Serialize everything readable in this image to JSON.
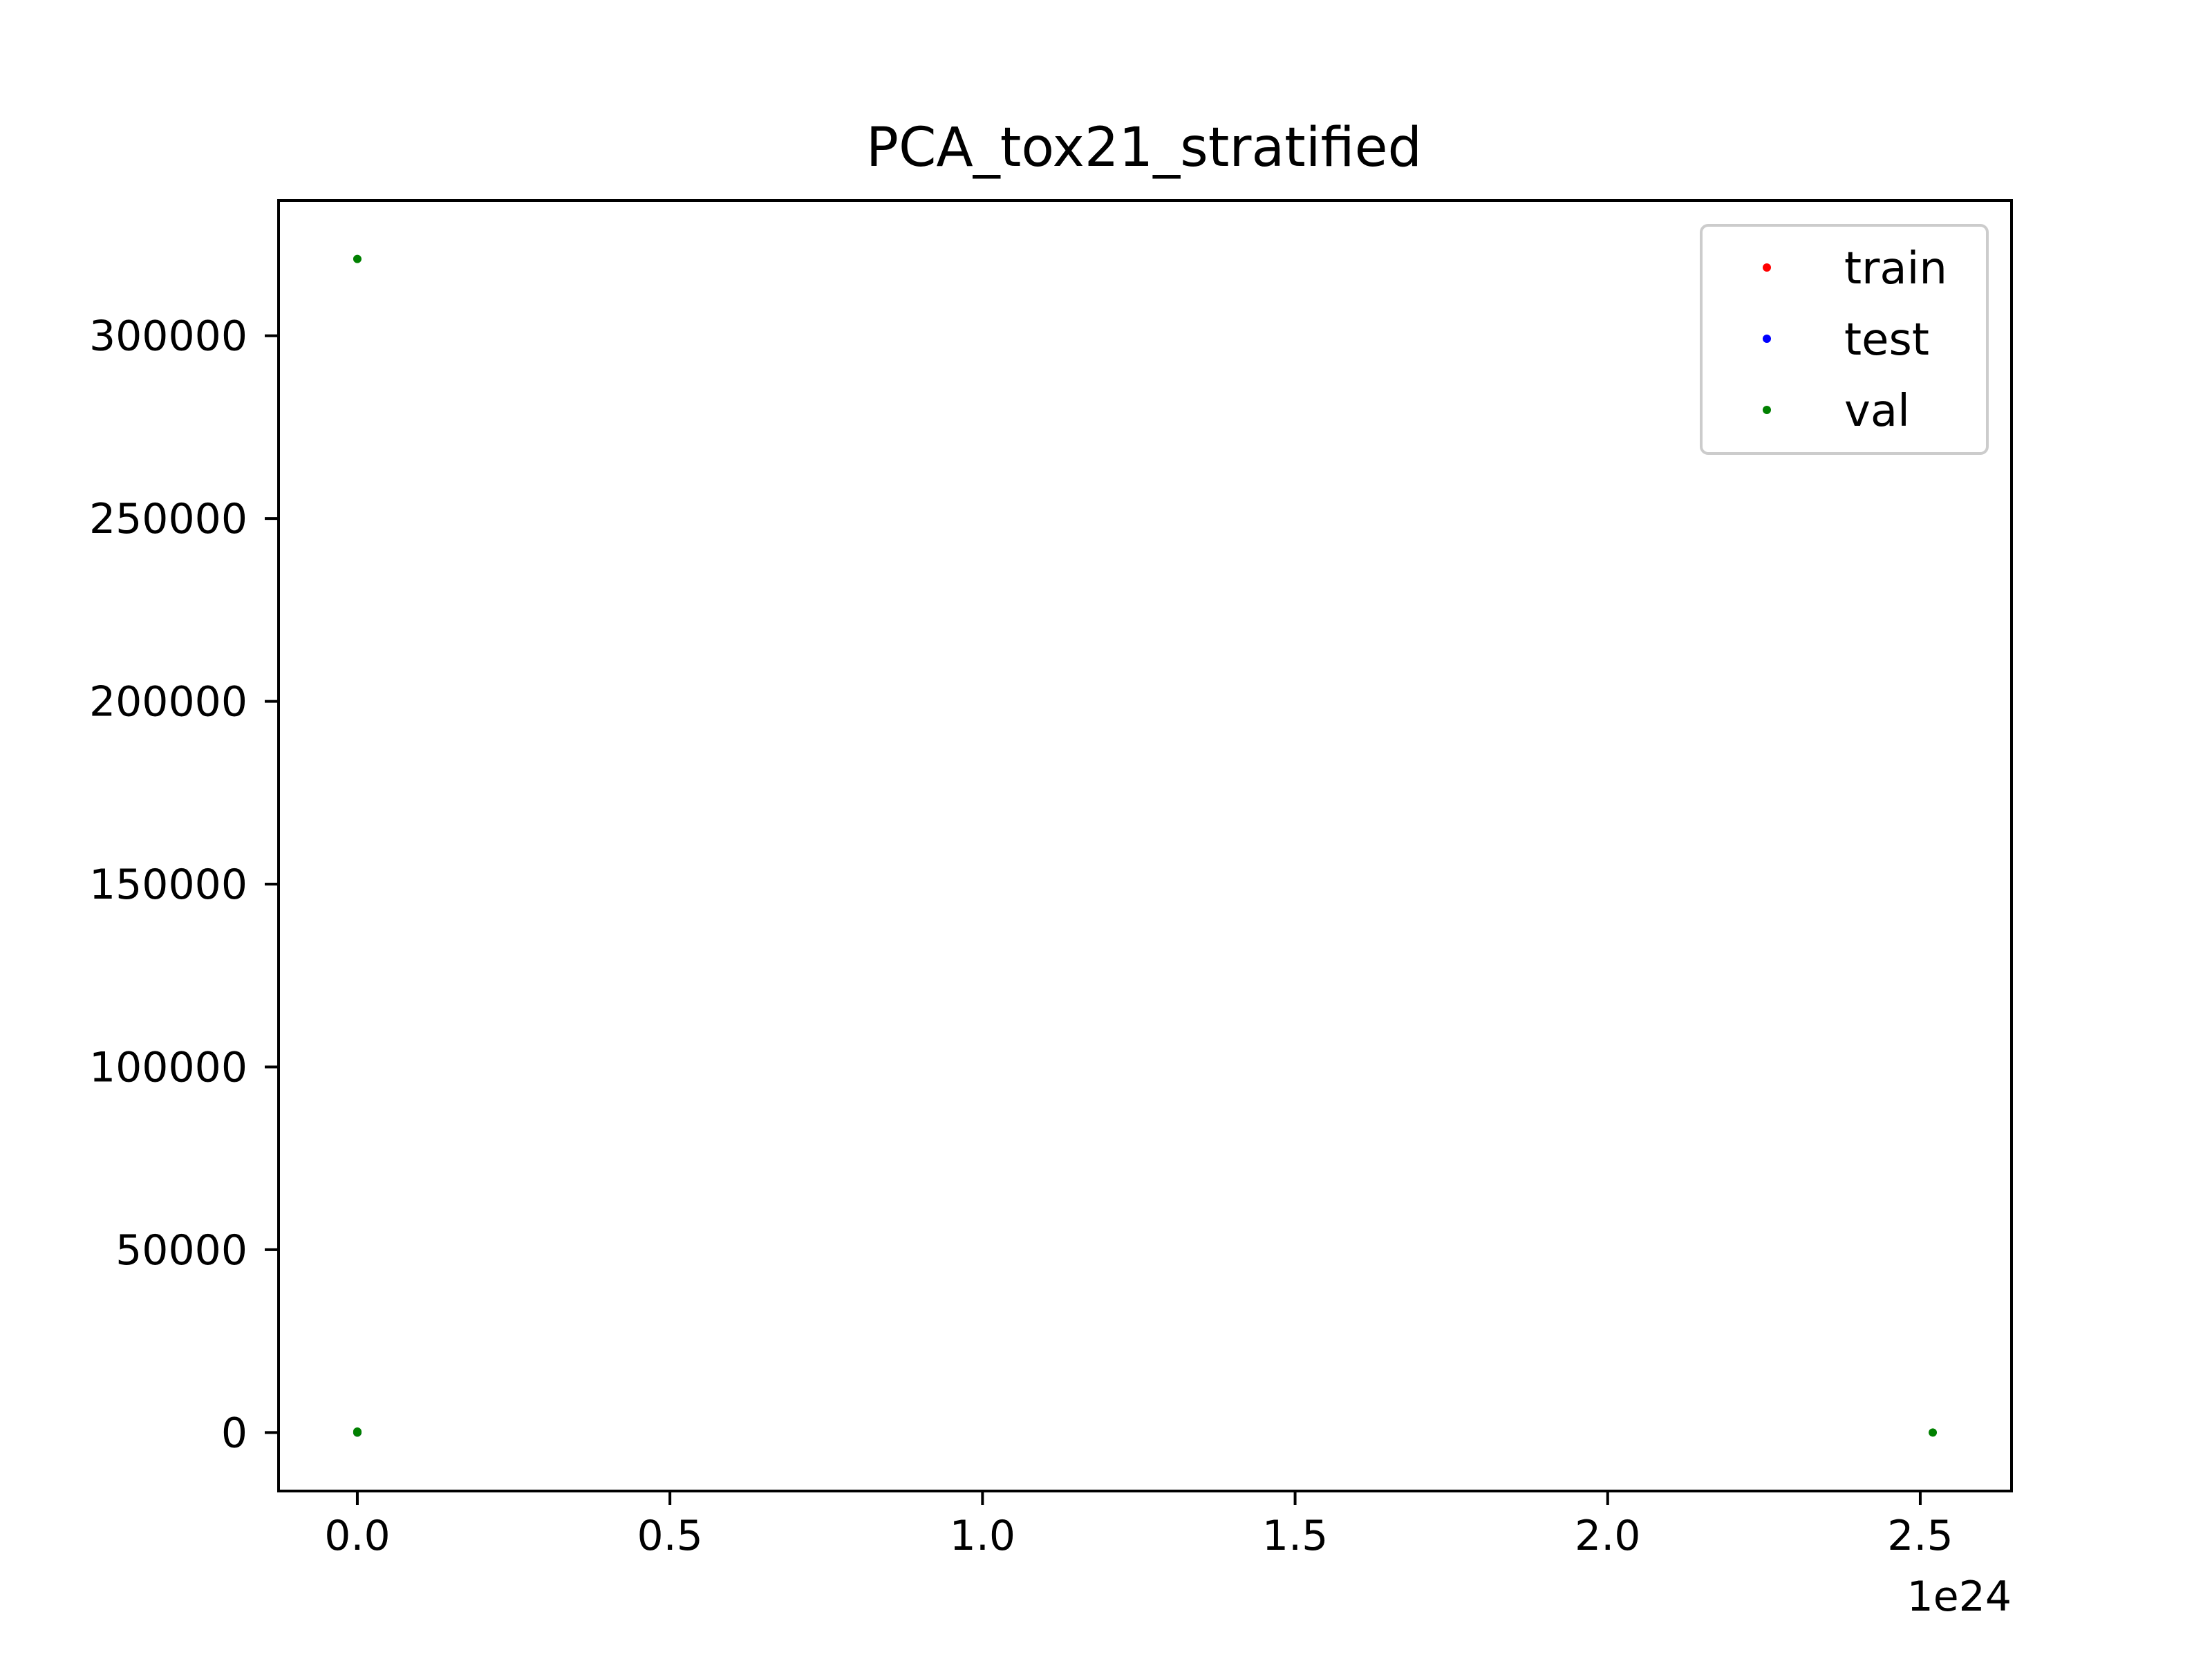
{
  "chart_data": {
    "type": "scatter",
    "title": "PCA_tox21_stratified",
    "xlabel": "",
    "ylabel": "",
    "x_offset_text": "1e24",
    "xlim": [
      -0.126,
      2.646
    ],
    "ylim": [
      -16000,
      337000
    ],
    "x_scale": 1e+24,
    "xticks": [
      0.0,
      0.5,
      1.0,
      1.5,
      2.0,
      2.5
    ],
    "xtick_labels": [
      "0.0",
      "0.5",
      "1.0",
      "1.5",
      "2.0",
      "2.5"
    ],
    "yticks": [
      0,
      50000,
      100000,
      150000,
      200000,
      250000,
      300000
    ],
    "ytick_labels": [
      "0",
      "50000",
      "100000",
      "150000",
      "200000",
      "250000",
      "300000"
    ],
    "grid": false,
    "legend_position": "top-right",
    "series": [
      {
        "name": "train",
        "color": "#ff0000",
        "points": [
          [
            0.0,
            0
          ],
          [
            0.0,
            120
          ]
        ]
      },
      {
        "name": "test",
        "color": "#0000ff",
        "points": [
          [
            0.0,
            0
          ],
          [
            0.0,
            80
          ]
        ]
      },
      {
        "name": "val",
        "color": "#008000",
        "points": [
          [
            0.0,
            321000
          ],
          [
            0.0,
            0
          ],
          [
            0.0,
            250
          ],
          [
            2.52,
            0
          ]
        ]
      }
    ]
  }
}
